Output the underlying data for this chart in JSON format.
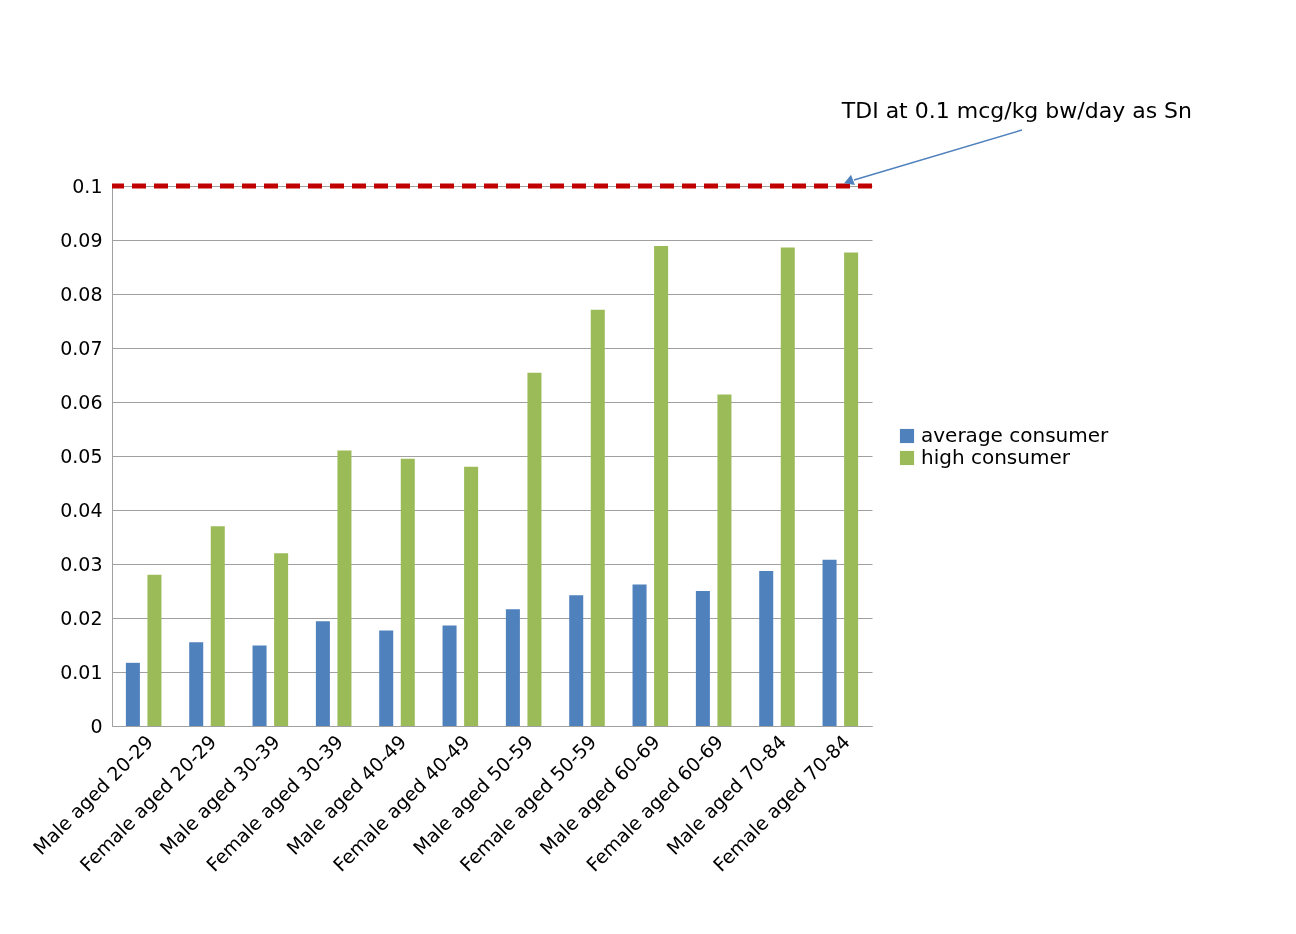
{
  "chart_data": {
    "type": "bar",
    "categories": [
      "Male aged 20-29",
      "Female aged 20-29",
      "Male aged 30-39",
      "Female aged 30-39",
      "Male aged 40-49",
      "Female aged 40-49",
      "Male aged 50-59",
      "Female aged 50-59",
      "Male aged 60-69",
      "Female aged 60-69",
      "Male aged 70-84",
      "Female aged 70-84"
    ],
    "series": [
      {
        "name": "average consumer",
        "color": "#4f81bd",
        "values": [
          0.0117,
          0.0155,
          0.0149,
          0.0194,
          0.0177,
          0.0186,
          0.0216,
          0.0242,
          0.0262,
          0.025,
          0.0287,
          0.0308
        ]
      },
      {
        "name": "high consumer",
        "color": "#9bbb59",
        "values": [
          0.028,
          0.037,
          0.032,
          0.051,
          0.0495,
          0.048,
          0.0654,
          0.0771,
          0.0889,
          0.0614,
          0.0886,
          0.0877
        ]
      }
    ],
    "ylim": [
      0,
      0.1
    ],
    "yticks": [
      0,
      0.01,
      0.02,
      0.03,
      0.04,
      0.05,
      0.06,
      0.07,
      0.08,
      0.09,
      0.1
    ],
    "ref_lines": [
      {
        "axis": "y",
        "value": 0.1,
        "label": "TDI at 0.1 mcg/kg bw/day as Sn",
        "color": "#c00000",
        "line_style": "dashed"
      }
    ],
    "grid": "y",
    "legend": "right"
  }
}
